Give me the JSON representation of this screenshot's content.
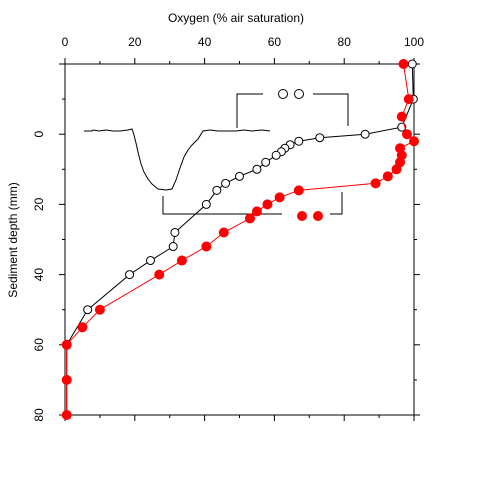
{
  "chart_data": {
    "type": "scatter",
    "title": "",
    "xlabel": "Oxygen (% air saturation)",
    "ylabel": "Sediment depth (mm)",
    "xlim": [
      0,
      100
    ],
    "ylim": [
      80,
      -20
    ],
    "x_axis_position": "top",
    "y_axis_inverted": true,
    "x_ticks": [
      0,
      20,
      40,
      60,
      80,
      100
    ],
    "x_tick_labels": [
      "0",
      "20",
      "40",
      "60",
      "80",
      "100"
    ],
    "y_ticks": [
      0,
      20,
      40,
      60,
      80
    ],
    "y_tick_labels": [
      "0",
      "20",
      "40",
      "60",
      "80"
    ],
    "grid": false,
    "series": [
      {
        "marker": "open-circle",
        "color": "#000000",
        "points": [
          {
            "x": 99.5,
            "y": -20
          },
          {
            "x": 99.8,
            "y": -10
          },
          {
            "x": 96.5,
            "y": -2
          },
          {
            "x": 86,
            "y": 0
          },
          {
            "x": 73,
            "y": 1
          },
          {
            "x": 67,
            "y": 2
          },
          {
            "x": 64.5,
            "y": 3
          },
          {
            "x": 63,
            "y": 4
          },
          {
            "x": 62,
            "y": 5
          },
          {
            "x": 60.5,
            "y": 6
          },
          {
            "x": 57.5,
            "y": 8
          },
          {
            "x": 55,
            "y": 10
          },
          {
            "x": 50,
            "y": 12
          },
          {
            "x": 46,
            "y": 14
          },
          {
            "x": 43.5,
            "y": 16
          },
          {
            "x": 40.5,
            "y": 20
          },
          {
            "x": 31.5,
            "y": 28
          },
          {
            "x": 31,
            "y": 32
          },
          {
            "x": 24.5,
            "y": 36
          },
          {
            "x": 18.5,
            "y": 40
          },
          {
            "x": 6.5,
            "y": 50
          },
          {
            "x": 0.5,
            "y": 60
          },
          {
            "x": 0.5,
            "y": 70
          },
          {
            "x": 0.5,
            "y": 80
          }
        ]
      },
      {
        "marker": "filled-circle",
        "color": "#ff0000",
        "points": [
          {
            "x": 97,
            "y": -20
          },
          {
            "x": 98.5,
            "y": -10
          },
          {
            "x": 96.5,
            "y": -5
          },
          {
            "x": 98,
            "y": 0
          },
          {
            "x": 100,
            "y": 2
          },
          {
            "x": 96,
            "y": 4
          },
          {
            "x": 96.5,
            "y": 6
          },
          {
            "x": 96,
            "y": 8
          },
          {
            "x": 95,
            "y": 10
          },
          {
            "x": 92.5,
            "y": 12
          },
          {
            "x": 89,
            "y": 14
          },
          {
            "x": 67,
            "y": 16
          },
          {
            "x": 61.5,
            "y": 18
          },
          {
            "x": 58,
            "y": 20
          },
          {
            "x": 55,
            "y": 22
          },
          {
            "x": 53,
            "y": 24
          },
          {
            "x": 45.5,
            "y": 28
          },
          {
            "x": 40.5,
            "y": 32
          },
          {
            "x": 33.5,
            "y": 36
          },
          {
            "x": 27,
            "y": 40
          },
          {
            "x": 10,
            "y": 50
          },
          {
            "x": 5,
            "y": 55
          },
          {
            "x": 0.5,
            "y": 60
          },
          {
            "x": 0.5,
            "y": 70
          },
          {
            "x": 0.5,
            "y": 80
          }
        ]
      }
    ],
    "inset": {
      "description_free": true,
      "marker_symbols": [
        "open-circle",
        "open-circle",
        "filled-circle",
        "filled-circle"
      ]
    }
  }
}
